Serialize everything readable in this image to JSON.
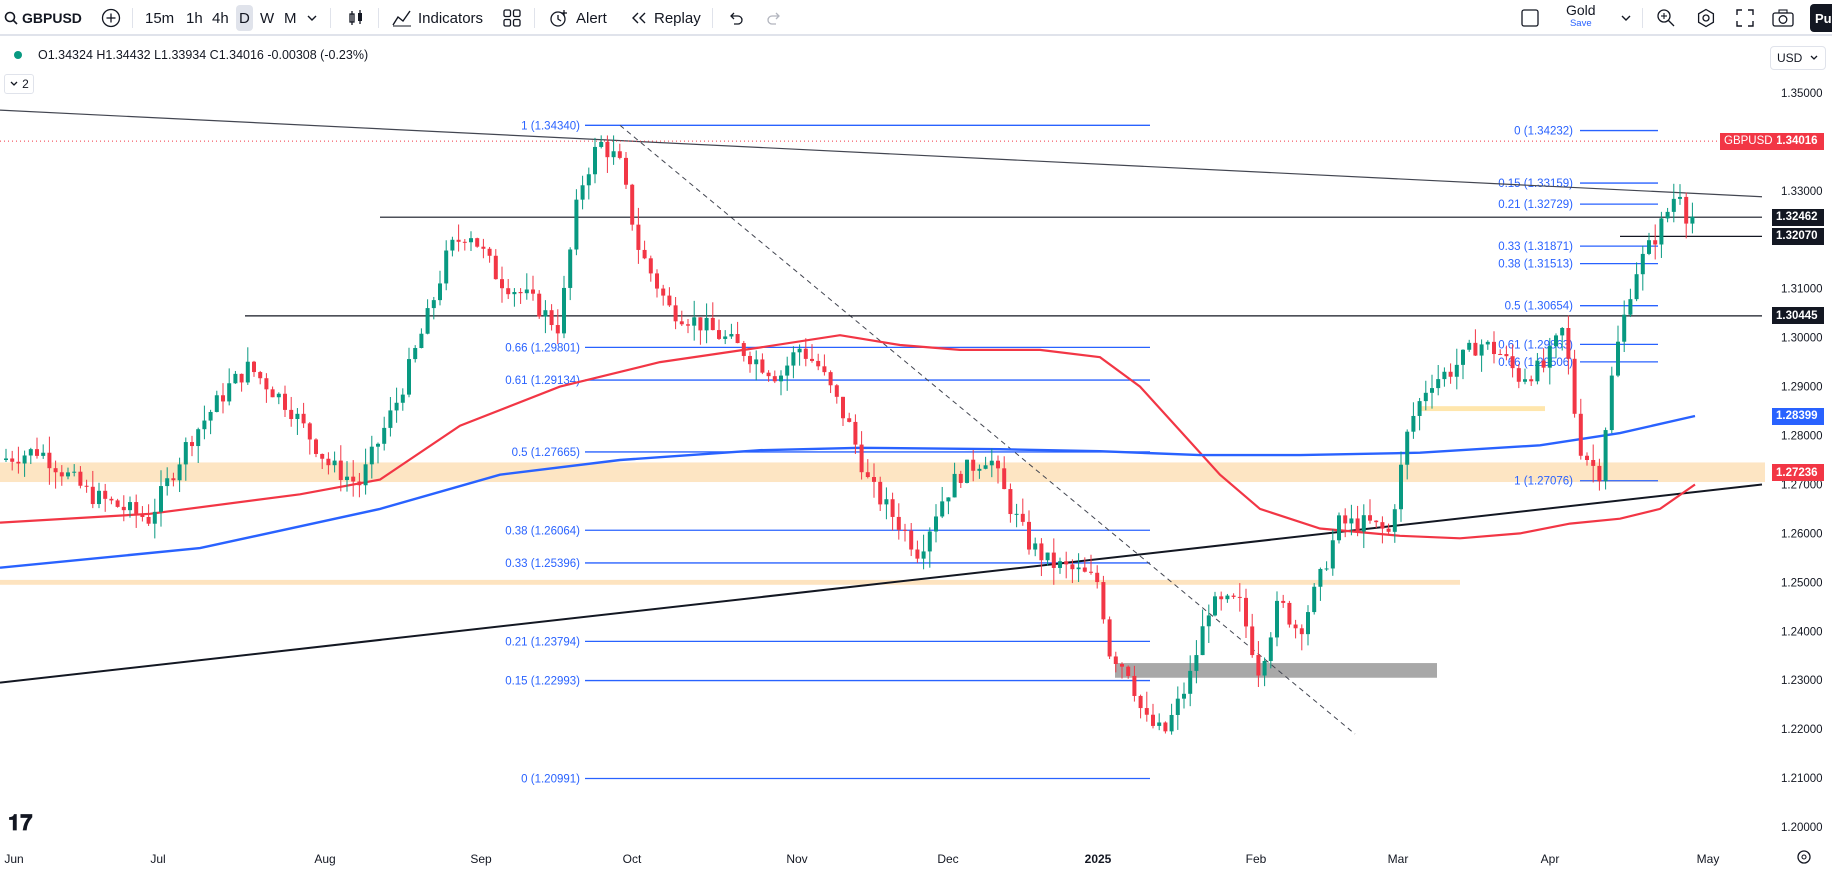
{
  "toolbar": {
    "symbol": "GBPUSD",
    "timeframes": [
      "15m",
      "1h",
      "4h",
      "D",
      "W",
      "M"
    ],
    "active_timeframe": "D",
    "indicators_label": "Indicators",
    "alert_label": "Alert",
    "replay_label": "Replay",
    "plan_name": "Gold",
    "plan_sub": "Save",
    "user_initials": "Pu"
  },
  "legend": {
    "ohlc": "O1.34324 H1.34432 L1.33934 C1.34016 -0.00308 (-0.23%)",
    "collapse_count": "2"
  },
  "currency": "USD",
  "price_axis": {
    "ticks": [
      "1.35000",
      "1.33000",
      "1.31000",
      "1.30000",
      "1.29000",
      "1.28000",
      "1.27000",
      "1.26000",
      "1.25000",
      "1.24000",
      "1.23000",
      "1.22000",
      "1.21000",
      "1.20000"
    ],
    "badges": [
      {
        "text": "1.34016",
        "bg": "#f23645"
      },
      {
        "text": "1.32462",
        "bg": "#131722"
      },
      {
        "text": "1.32070",
        "bg": "#131722"
      },
      {
        "text": "1.30445",
        "bg": "#131722"
      },
      {
        "text": "1.28399",
        "bg": "#2962ff"
      },
      {
        "text": "1.27236",
        "bg": "#f23645"
      }
    ],
    "symbol_badge": "GBPUSD"
  },
  "time_axis": [
    "Jun",
    "Jul",
    "Aug",
    "Sep",
    "Oct",
    "Nov",
    "Dec",
    "2025",
    "Feb",
    "Mar",
    "Apr",
    "May"
  ],
  "fib_left": [
    "1 (1.34340)",
    "0.66 (1.29801)",
    "0.61 (1.29134)",
    "0.5 (1.27665)",
    "0.38 (1.26064)",
    "0.33 (1.25396)",
    "0.21 (1.23794)",
    "0.15 (1.22993)",
    "0 (1.20991)"
  ],
  "fib_right": [
    "0 (1.34232)",
    "0.15 (1.33159)",
    "0.21 (1.32729)",
    "0.33 (1.31871)",
    "0.38 (1.31513)",
    "0.5 (1.30654)",
    "0.61 (1.29863)",
    "0.66 (1.29506)",
    "1 (1.27076)"
  ],
  "colors": {
    "up": "#089981",
    "down": "#f23645",
    "ma_fast": "#f23645",
    "ma_slow": "#2962ff",
    "fib": "#2962ff",
    "zone": "#fde0b8"
  },
  "chart_data": {
    "type": "candlestick",
    "symbol": "GBPUSD",
    "interval": "D",
    "y_range": [
      1.2,
      1.355
    ],
    "last_close": 1.34016,
    "horizontal_levels": [
      1.32462,
      1.3207,
      1.30445
    ],
    "ma_fast_last": 1.27236,
    "ma_slow_last": 1.28399,
    "fib_left_levels": [
      1.3434,
      1.29801,
      1.29134,
      1.27665,
      1.26064,
      1.25396,
      1.23794,
      1.22993,
      1.20991
    ],
    "fib_right_levels": [
      1.34232,
      1.33159,
      1.32729,
      1.31871,
      1.31513,
      1.30654,
      1.29863,
      1.29506,
      1.27076
    ]
  }
}
